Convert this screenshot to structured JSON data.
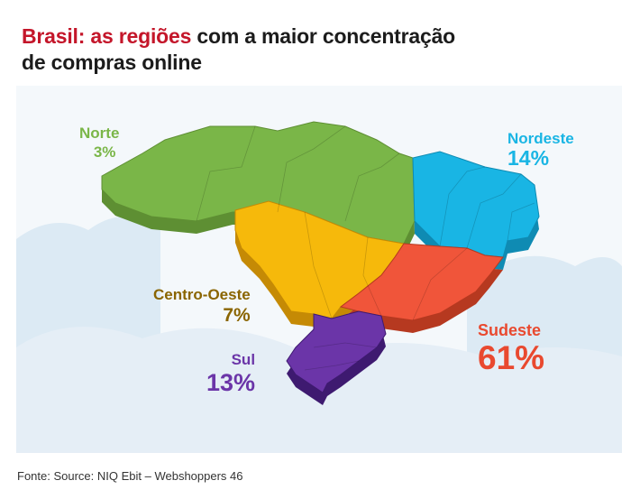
{
  "title": {
    "accent": "Brasil: as regiões",
    "rest": "com a maior concentração",
    "line2": "de compras online"
  },
  "regions": {
    "norte": {
      "name": "Norte",
      "percent": "3%",
      "color": "#7ab648"
    },
    "nordeste": {
      "name": "Nordeste",
      "percent": "14%",
      "color": "#19b5e4"
    },
    "centro_oeste": {
      "name": "Centro-Oeste",
      "percent": "7%",
      "color": "#f6b90b"
    },
    "sudeste": {
      "name": "Sudeste",
      "percent": "61%",
      "color": "#f0553a"
    },
    "sul": {
      "name": "Sul",
      "percent": "13%",
      "color": "#6b35a8"
    }
  },
  "source": "Fonte: Source: NIQ Ebit – Webshoppers 46"
}
